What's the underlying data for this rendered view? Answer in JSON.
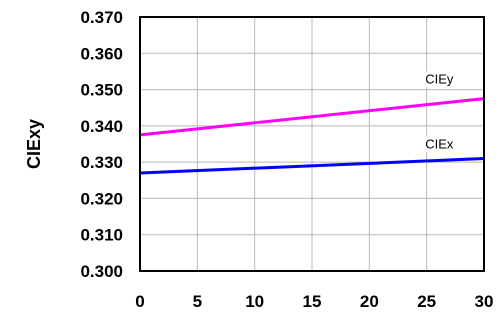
{
  "chart_data": {
    "type": "line",
    "title": "",
    "xlabel": "",
    "ylabel": "CIExy",
    "xlim": [
      0,
      30
    ],
    "ylim": [
      0.3,
      0.37
    ],
    "x_ticks": [
      "0",
      "5",
      "10",
      "15",
      "20",
      "25",
      "30"
    ],
    "y_ticks": [
      "0.300",
      "0.310",
      "0.320",
      "0.330",
      "0.340",
      "0.350",
      "0.360",
      "0.370"
    ],
    "grid": true,
    "legend": "none",
    "series": [
      {
        "name": "CIEy",
        "color": "#ff00ff",
        "x": [
          0,
          30
        ],
        "y": [
          0.3375,
          0.3475
        ]
      },
      {
        "name": "CIEx",
        "color": "#0000ff",
        "x": [
          0,
          30
        ],
        "y": [
          0.327,
          0.331
        ]
      }
    ]
  }
}
